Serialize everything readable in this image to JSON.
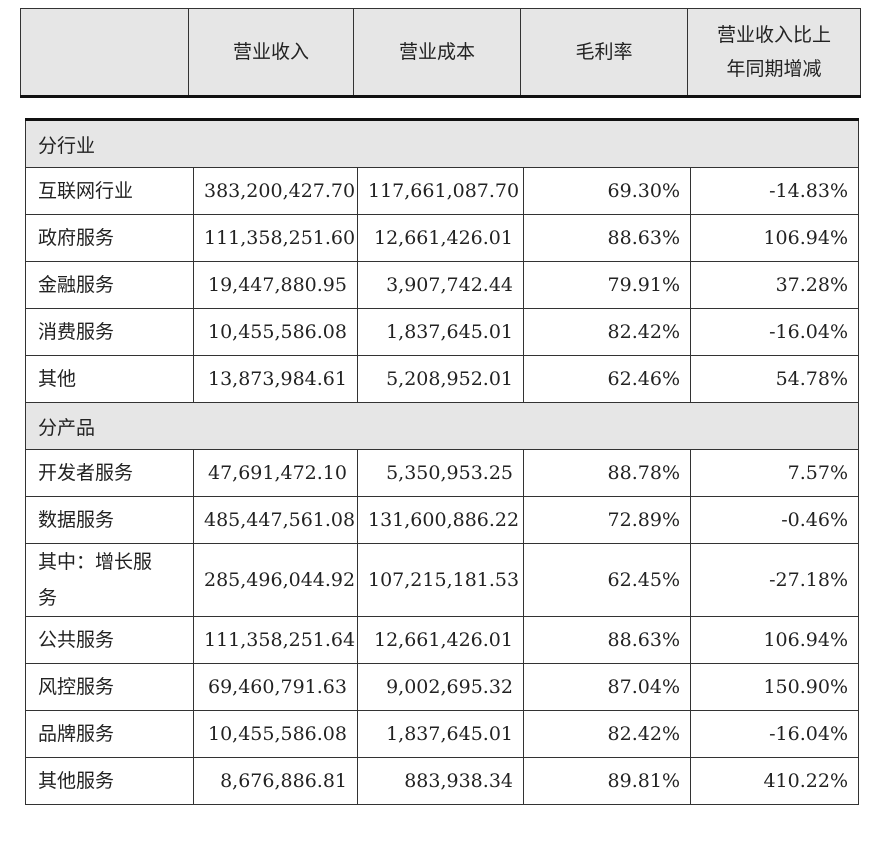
{
  "header": {
    "columns": [
      "营业收入",
      "营业成本",
      "毛利率",
      "营业收入比上年同期增减"
    ]
  },
  "sections": [
    {
      "label": "分行业",
      "rows": [
        [
          "互联网行业",
          "383,200,427.70",
          "117,661,087.70",
          "69.30%",
          "-14.83%"
        ],
        [
          "政府服务",
          "111,358,251.60",
          "12,661,426.01",
          "88.63%",
          "106.94%"
        ],
        [
          "金融服务",
          "19,447,880.95",
          "3,907,742.44",
          "79.91%",
          "37.28%"
        ],
        [
          "消费服务",
          "10,455,586.08",
          "1,837,645.01",
          "82.42%",
          "-16.04%"
        ],
        [
          "其他",
          "13,873,984.61",
          "5,208,952.01",
          "62.46%",
          "54.78%"
        ]
      ]
    },
    {
      "label": "分产品",
      "rows": [
        [
          "开发者服务",
          "47,691,472.10",
          "5,350,953.25",
          "88.78%",
          "7.57%"
        ],
        [
          "数据服务",
          "485,447,561.08",
          "131,600,886.22",
          "72.89%",
          "-0.46%"
        ],
        [
          "其中：增长服务",
          "285,496,044.92",
          "107,215,181.53",
          "62.45%",
          "-27.18%"
        ],
        [
          "公共服务",
          "111,358,251.64",
          "12,661,426.01",
          "88.63%",
          "106.94%"
        ],
        [
          "风控服务",
          "69,460,791.63",
          "9,002,695.32",
          "87.04%",
          "150.90%"
        ],
        [
          "品牌服务",
          "10,455,586.08",
          "1,837,645.01",
          "82.42%",
          "-16.04%"
        ],
        [
          "其他服务",
          "8,676,886.81",
          "883,938.34",
          "89.81%",
          "410.22%"
        ]
      ]
    }
  ]
}
